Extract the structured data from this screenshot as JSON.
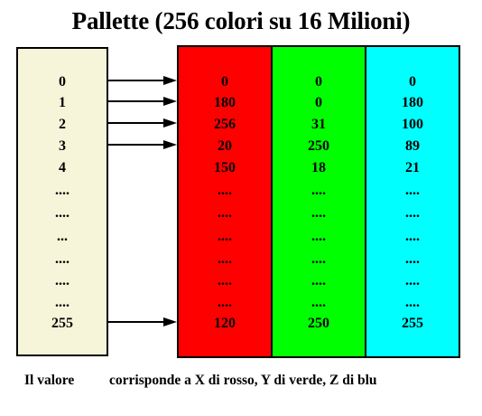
{
  "title": "Pallette (256 colori su 16 Milioni)",
  "colors": {
    "index_bg": "#f7f5d9",
    "red": "#ff0000",
    "green": "#00ff00",
    "blue": "#00ffff",
    "border": "#000000"
  },
  "rows": [
    {
      "index": "0",
      "red": "0",
      "green": "0",
      "blue": "0",
      "arrow": true
    },
    {
      "index": "1",
      "red": "180",
      "green": "0",
      "blue": "180",
      "arrow": true
    },
    {
      "index": "2",
      "red": "256",
      "green": "31",
      "blue": "100",
      "arrow": true
    },
    {
      "index": "3",
      "red": "20",
      "green": "250",
      "blue": "89",
      "arrow": true
    },
    {
      "index": "4",
      "red": "150",
      "green": "18",
      "blue": "21",
      "arrow": false
    },
    {
      "index": "....",
      "red": "....",
      "green": "....",
      "blue": "....",
      "arrow": false
    },
    {
      "index": "....",
      "red": "....",
      "green": "....",
      "blue": "....",
      "arrow": false
    },
    {
      "index": "...",
      "red": "....",
      "green": "....",
      "blue": "....",
      "arrow": false
    },
    {
      "index": "....",
      "red": "....",
      "green": "....",
      "blue": "....",
      "arrow": false
    },
    {
      "index": "....",
      "red": "....",
      "green": "....",
      "blue": "....",
      "arrow": false
    },
    {
      "index": "....",
      "red": "....",
      "green": "....",
      "blue": "....",
      "arrow": false
    },
    {
      "index": "255",
      "red": "120",
      "green": "250",
      "blue": "255",
      "arrow": true
    }
  ],
  "caption": {
    "left": "Il valore",
    "right": "corrisponde a  X di rosso, Y di verde, Z di blu"
  }
}
